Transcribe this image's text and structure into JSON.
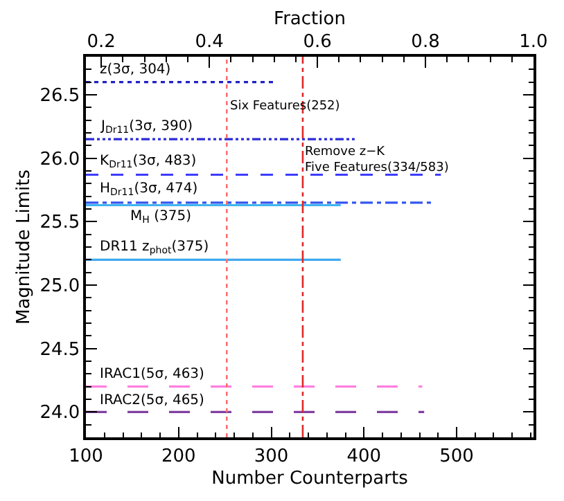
{
  "chart_data": {
    "type": "line",
    "xlabel": "Number Counterparts",
    "ylabel": "Magnitude Limits",
    "x2label": "Fraction",
    "xlim": [
      100,
      583
    ],
    "xticks": [
      100,
      200,
      300,
      400,
      500
    ],
    "x2lim": [
      0.1715,
      1.0
    ],
    "x2ticks": [
      {
        "value": 0.2,
        "label": "0.2"
      },
      {
        "value": 0.4,
        "label": "0.4"
      },
      {
        "value": 0.6,
        "label": "0.6"
      },
      {
        "value": 0.8,
        "label": "0.8"
      },
      {
        "value": 1.0,
        "label": "1.0"
      }
    ],
    "ylim": [
      23.8,
      26.8
    ],
    "yticks": [
      {
        "value": 24.0,
        "label": "24.0"
      },
      {
        "value": 24.5,
        "label": "24.5"
      },
      {
        "value": 25.0,
        "label": "25.0"
      },
      {
        "value": 25.5,
        "label": "25.5"
      },
      {
        "value": 26.0,
        "label": "26.0"
      },
      {
        "value": 26.5,
        "label": "26.5"
      }
    ],
    "legend": false,
    "marker": "none",
    "series": [
      {
        "name": "z(3σ, 304)",
        "color": "#2020c8",
        "line_style": "dotted",
        "x": [
          100,
          304
        ],
        "values": [
          26.6,
          26.6
        ]
      },
      {
        "name": "J$_{Dr11}$(3σ, 390)",
        "color": "#2a2ad8",
        "line_style": "dashdotdotdot",
        "x": [
          100,
          390
        ],
        "values": [
          26.15,
          26.15
        ]
      },
      {
        "name": "K$_{Dr11}$(3σ, 483)",
        "color": "#3c3cff",
        "line_style": "dashed",
        "x": [
          100,
          483
        ],
        "values": [
          25.87,
          25.87
        ]
      },
      {
        "name": "H$_{Dr11}$(3σ, 474)",
        "color": "#3355f0",
        "line_style": "dashdot",
        "x": [
          100,
          474
        ],
        "values": [
          25.65,
          25.65
        ]
      },
      {
        "name": "M$_{H}$ (375)",
        "color": "#40b4f0",
        "line_style": "solid",
        "x": [
          100,
          375
        ],
        "values": [
          25.63,
          25.63
        ]
      },
      {
        "name": "DR11 z$_{phot}$(375)",
        "color": "#40a8f0",
        "line_style": "solid",
        "x": [
          100,
          375
        ],
        "values": [
          25.2,
          25.2
        ]
      },
      {
        "name": "IRAC1(5σ, 463)",
        "color": "#ff80e0",
        "line_style": "longdash",
        "x": [
          100,
          463
        ],
        "values": [
          24.2,
          24.2
        ]
      },
      {
        "name": "IRAC2(5σ, 465)",
        "color": "#8040a0",
        "line_style": "longdash",
        "x": [
          100,
          465
        ],
        "values": [
          24.0,
          24.0
        ]
      }
    ],
    "ref_lines": [
      {
        "axis": "x",
        "value": 252,
        "label": "Six Features(252)",
        "color": "#ff7070",
        "line_style": "dotted"
      },
      {
        "axis": "x",
        "value": 334,
        "label": "Remove z−K\nFive Features(334/583)",
        "color": "#e02828",
        "line_style": "dashdot"
      }
    ]
  }
}
